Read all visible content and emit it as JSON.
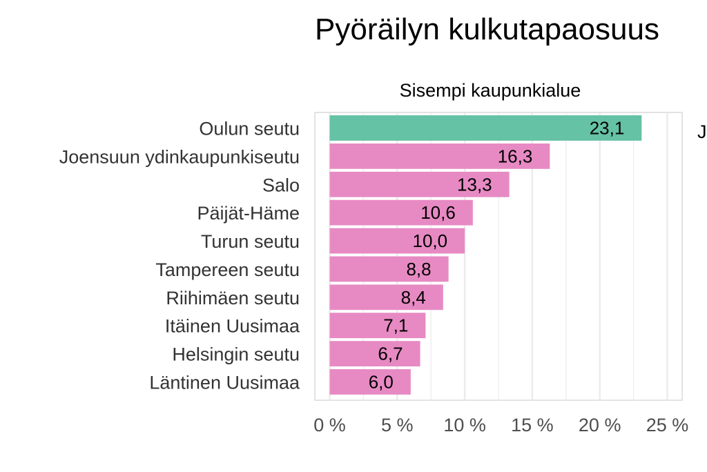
{
  "chart_data": {
    "type": "bar",
    "orientation": "horizontal",
    "title": "Pyöräilyn kulkutapaosuus",
    "panel_title": "Sisempi kaupunkialue",
    "next_panel_peek": "J",
    "categories": [
      "Oulun seutu",
      "Joensuun ydinkaupunkiseutu",
      "Salo",
      "Päijät-Häme",
      "Turun seutu",
      "Tampereen seutu",
      "Riihimäen seutu",
      "Itäinen Uusimaa",
      "Helsingin seutu",
      "Läntinen Uusimaa"
    ],
    "values": [
      23.1,
      16.3,
      13.3,
      10.6,
      10.0,
      8.8,
      8.4,
      7.1,
      6.7,
      6.0
    ],
    "value_labels": [
      "23,1",
      "16,3",
      "13,3",
      "10,6",
      "10,0",
      "8,8",
      "8,4",
      "7,1",
      "6,7",
      "6,0"
    ],
    "bar_colors": [
      "#66c2a5",
      "#e78ac3",
      "#e78ac3",
      "#e78ac3",
      "#e78ac3",
      "#e78ac3",
      "#e78ac3",
      "#e78ac3",
      "#e78ac3",
      "#e78ac3"
    ],
    "x_ticks": [
      0,
      5,
      10,
      15,
      20,
      25
    ],
    "x_tick_labels": [
      "0 %",
      "5 %",
      "10 %",
      "15 %",
      "20 %",
      "25 %"
    ],
    "xlim": [
      -1.1,
      26.1
    ],
    "xlabel": "",
    "ylabel": "",
    "grid": true,
    "legend": "none",
    "colors": {
      "highlight": "#66c2a5",
      "default": "#e78ac3",
      "grid": "#ebebeb",
      "panel_border": "#e3e3e3"
    }
  }
}
